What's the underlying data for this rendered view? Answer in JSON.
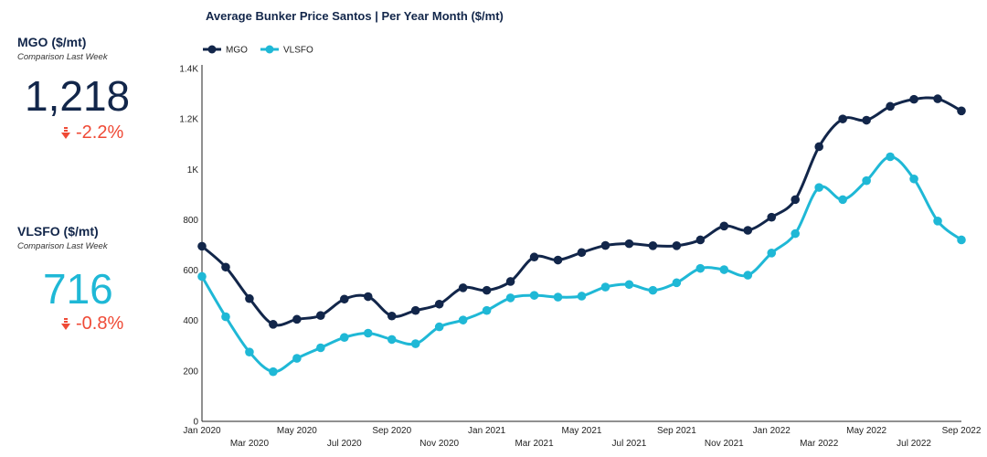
{
  "kpis": {
    "mgo": {
      "title": "MGO ($/mt)",
      "subtitle": "Comparison Last Week",
      "value": "1,218",
      "change": "-2.2%",
      "value_color": "#12264a",
      "change_color": "#ef4a36",
      "change_icon": "arrow-down-icon"
    },
    "vlsfo": {
      "title": "VLSFO ($/mt)",
      "subtitle": "Comparison Last Week",
      "value": "716",
      "change": "-0.8%",
      "value_color": "#1fb8d6",
      "change_color": "#ef4a36",
      "change_icon": "arrow-down-icon"
    }
  },
  "chart_data": {
    "type": "line",
    "title": "Average Bunker Price Santos | Per Year Month ($/mt)",
    "xlabel": "",
    "ylabel": "",
    "x": [
      "Jan 2020",
      "Feb 2020",
      "Mar 2020",
      "Apr 2020",
      "May 2020",
      "Jun 2020",
      "Jul 2020",
      "Aug 2020",
      "Sep 2020",
      "Oct 2020",
      "Nov 2020",
      "Dec 2020",
      "Jan 2021",
      "Feb 2021",
      "Mar 2021",
      "Apr 2021",
      "May 2021",
      "Jun 2021",
      "Jul 2021",
      "Aug 2021",
      "Sep 2021",
      "Oct 2021",
      "Nov 2021",
      "Dec 2021",
      "Jan 2022",
      "Feb 2022",
      "Mar 2022",
      "Apr 2022",
      "May 2022",
      "Jun 2022",
      "Jul 2022",
      "Aug 2022",
      "Sep 2022"
    ],
    "x_tick_labels": [
      "Jan 2020",
      "Mar 2020",
      "May 2020",
      "Jul 2020",
      "Sep 2020",
      "Nov 2020",
      "Jan 2021",
      "Mar 2021",
      "May 2021",
      "Jul 2021",
      "Sep 2021",
      "Nov 2021",
      "Jan 2022",
      "Mar 2022",
      "May 2022",
      "Jul 2022",
      "Sep 2022"
    ],
    "y_ticks": [
      0,
      200,
      400,
      600,
      800,
      1000,
      1200,
      1400
    ],
    "y_tick_labels": [
      "0",
      "200",
      "400",
      "600",
      "800",
      "1K",
      "1.2K",
      "1.4K"
    ],
    "ylim": [
      0,
      1400
    ],
    "grid": false,
    "legend_position": "top-left",
    "series": [
      {
        "name": "MGO",
        "color": "#12264a",
        "values": [
          695,
          612,
          487,
          385,
          405,
          420,
          485,
          495,
          418,
          440,
          465,
          530,
          520,
          555,
          652,
          640,
          670,
          698,
          705,
          697,
          697,
          720,
          775,
          758,
          810,
          880,
          1090,
          1200,
          1195,
          1250,
          1278,
          1280,
          1232
        ]
      },
      {
        "name": "VLSFO",
        "color": "#1fb8d6",
        "values": [
          575,
          415,
          275,
          197,
          250,
          292,
          333,
          350,
          325,
          308,
          375,
          402,
          440,
          490,
          500,
          493,
          497,
          533,
          543,
          520,
          550,
          607,
          602,
          580,
          668,
          745,
          928,
          880,
          955,
          1050,
          962,
          795,
          720
        ]
      }
    ]
  }
}
